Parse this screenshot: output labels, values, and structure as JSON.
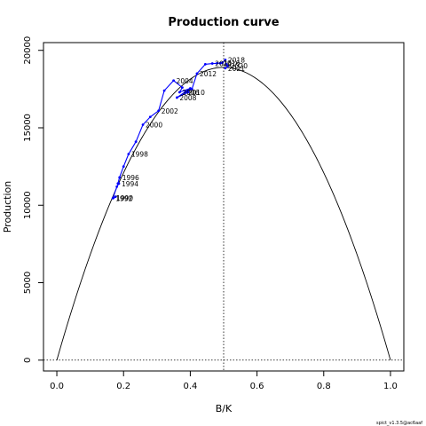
{
  "chart_data": {
    "type": "line",
    "title": "Production curve",
    "xlabel": "B/K",
    "ylabel": "Production",
    "xlim": [
      -0.04,
      1.04
    ],
    "ylim": [
      -700,
      20500
    ],
    "x_ticks": [
      0.0,
      0.2,
      0.4,
      0.6,
      0.8,
      1.0
    ],
    "x_tick_labels": [
      "0.0",
      "0.2",
      "0.4",
      "0.6",
      "0.8",
      "1.0"
    ],
    "y_ticks": [
      0,
      5000,
      10000,
      15000,
      20000
    ],
    "y_tick_labels": [
      "0",
      "5000",
      "10000",
      "15000",
      "20000"
    ],
    "grid": false,
    "legend": "none",
    "footer": "spict_v1.3.5@ac6aaf",
    "reference_lines": {
      "vertical_x": 0.5,
      "horizontal_y": 0
    },
    "production_curve": {
      "peak_x": 0.5,
      "peak_y": 18900,
      "color": "#000000"
    },
    "series": [
      {
        "color": "#0000ff",
        "points": [
          {
            "year": "1990",
            "x": 0.17,
            "y": 10480
          },
          {
            "year": "1991",
            "x": 0.176,
            "y": 10550
          },
          {
            "year": "1992",
            "x": 0.168,
            "y": 10450
          },
          {
            "year": "1993",
            "x": 0.18,
            "y": 11200
          },
          {
            "year": "1994",
            "x": 0.186,
            "y": 11400
          },
          {
            "year": "1995",
            "x": 0.183,
            "y": 11400
          },
          {
            "year": "1996",
            "x": 0.188,
            "y": 11800
          },
          {
            "year": "1997",
            "x": 0.2,
            "y": 12500
          },
          {
            "year": "1998",
            "x": 0.215,
            "y": 13300
          },
          {
            "year": "1999",
            "x": 0.237,
            "y": 14100
          },
          {
            "year": "2000",
            "x": 0.258,
            "y": 15200
          },
          {
            "year": "2001",
            "x": 0.28,
            "y": 15700
          },
          {
            "year": "2002",
            "x": 0.305,
            "y": 16100
          },
          {
            "year": "2003",
            "x": 0.322,
            "y": 17400
          },
          {
            "year": "2004",
            "x": 0.35,
            "y": 18050
          },
          {
            "year": "2005",
            "x": 0.376,
            "y": 17600
          },
          {
            "year": "2006",
            "x": 0.368,
            "y": 17300
          },
          {
            "year": "2007",
            "x": 0.4,
            "y": 17550
          },
          {
            "year": "2008",
            "x": 0.36,
            "y": 16950
          },
          {
            "year": "2009",
            "x": 0.394,
            "y": 17300
          },
          {
            "year": "2010",
            "x": 0.385,
            "y": 17300
          },
          {
            "year": "2011",
            "x": 0.405,
            "y": 17500
          },
          {
            "year": "2012",
            "x": 0.42,
            "y": 18500
          },
          {
            "year": "2013",
            "x": 0.445,
            "y": 19100
          },
          {
            "year": "2014",
            "x": 0.466,
            "y": 19150
          },
          {
            "year": "2015",
            "x": 0.48,
            "y": 19160
          },
          {
            "year": "2016",
            "x": 0.49,
            "y": 19170
          },
          {
            "year": "2017",
            "x": 0.496,
            "y": 19200
          },
          {
            "year": "2018",
            "x": 0.505,
            "y": 19380
          },
          {
            "year": "2019",
            "x": 0.508,
            "y": 19100
          },
          {
            "year": "2020",
            "x": 0.513,
            "y": 19000
          },
          {
            "year": "2021",
            "x": 0.505,
            "y": 18850
          }
        ],
        "labeled_years": [
          "1990",
          "1992",
          "1994",
          "1996",
          "1998",
          "2000",
          "2002",
          "2004",
          "2006",
          "2008",
          "2010",
          "2012",
          "2014",
          "2016",
          "2018",
          "2020",
          "2021"
        ]
      }
    ]
  }
}
